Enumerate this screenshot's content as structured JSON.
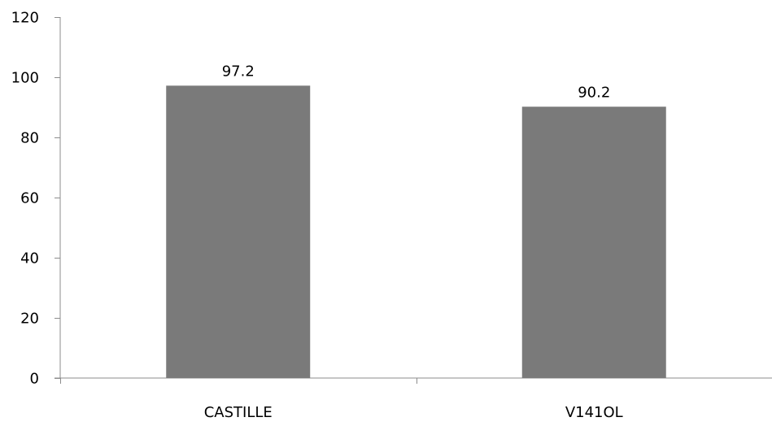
{
  "chart_data": {
    "type": "bar",
    "title": "",
    "xlabel": "",
    "ylabel": "",
    "categories": [
      "CASTILLE",
      "V141OL"
    ],
    "series": [
      {
        "values": [
          97.2,
          90.2
        ]
      }
    ],
    "data_labels": [
      "97.2",
      "90.2"
    ],
    "ylim": [
      0,
      120
    ],
    "yticks": [
      0,
      20,
      40,
      60,
      80,
      100,
      120
    ],
    "grid": false,
    "legend": "none",
    "colors": {
      "bar": "#7a7a7a",
      "axis": "#8c8c8c",
      "text": "#000000"
    }
  }
}
